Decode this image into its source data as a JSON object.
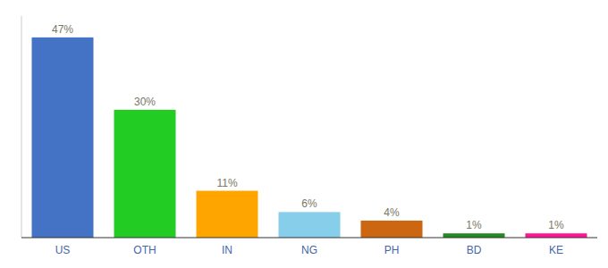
{
  "chart_data": {
    "type": "bar",
    "categories": [
      "US",
      "OTH",
      "IN",
      "NG",
      "PH",
      "BD",
      "KE"
    ],
    "values": [
      47,
      30,
      11,
      6,
      4,
      1,
      1
    ],
    "value_labels": [
      "47%",
      "30%",
      "11%",
      "6%",
      "4%",
      "1%",
      "1%"
    ],
    "colors": [
      "#4472C4",
      "#22CC22",
      "#FFA500",
      "#87CEEB",
      "#CC6611",
      "#228B22",
      "#FF1493"
    ],
    "ylim": [
      0,
      52
    ],
    "data_labels": true,
    "tick_labels": "x"
  }
}
